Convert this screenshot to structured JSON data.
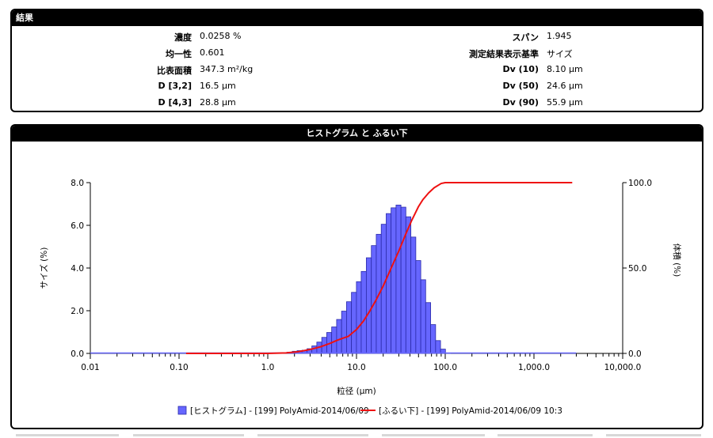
{
  "results": {
    "title": "結果",
    "left": [
      {
        "label": "濃度",
        "value": "0.0258 %"
      },
      {
        "label": "均一性",
        "value": "0.601"
      },
      {
        "label": "比表面積",
        "value": "347.3 m²/kg"
      },
      {
        "label": "D [3,2]",
        "value": "16.5 μm"
      },
      {
        "label": "D [4,3]",
        "value": "28.8 μm"
      }
    ],
    "right": [
      {
        "label": "スパン",
        "value": "1.945"
      },
      {
        "label": "測定結果表示基準",
        "value": "サイズ"
      },
      {
        "label": "Dv (10)",
        "value": "8.10 μm"
      },
      {
        "label": "Dv (50)",
        "value": "24.6 μm"
      },
      {
        "label": "Dv (90)",
        "value": "55.9 μm"
      }
    ]
  },
  "chart_data": {
    "type": "bar",
    "title": "ヒストグラム と ふるい下",
    "xlabel": "粒径 (μm)",
    "ylabel": "サイズ (%)",
    "y2label": "体積 (%)",
    "xscale": "log",
    "xlim": [
      0.01,
      10000
    ],
    "ylim": [
      0,
      8
    ],
    "y2lim": [
      0,
      100
    ],
    "xticks": [
      0.01,
      0.1,
      1,
      10,
      100,
      1000,
      10000
    ],
    "xticklabels": [
      "0.01",
      "0.10",
      "1.0",
      "10.0",
      "100.0",
      "1,000.0",
      "10,000.0"
    ],
    "yticks": [
      0,
      2,
      4,
      6,
      8
    ],
    "yticklabels": [
      "0.0",
      "2.0",
      "4.0",
      "6.0",
      "8.0"
    ],
    "y2ticks": [
      0,
      50,
      100
    ],
    "y2ticklabels": [
      "0.0",
      "50.0",
      "100.0"
    ],
    "grid": false,
    "legend_position": "bottom",
    "series": [
      {
        "name": "[ヒストグラム] - [199] PolyAmid-2014/06/09",
        "kind": "histogram",
        "color": "#6666ff",
        "edge_color": "#2a2aa8",
        "bins_x": [
          1.66,
          1.89,
          2.14,
          2.43,
          2.77,
          3.14,
          3.57,
          4.06,
          4.62,
          5.25,
          5.97,
          6.79,
          7.72,
          8.77,
          9.98,
          11.3,
          12.9,
          14.7,
          16.7,
          19.0,
          21.6,
          24.5,
          27.9,
          31.7,
          36.0,
          41.0,
          46.6,
          53.0,
          60.2,
          68.5,
          77.9,
          88.5,
          100.6
        ],
        "values": [
          0.06,
          0.1,
          0.13,
          0.15,
          0.22,
          0.35,
          0.53,
          0.75,
          0.98,
          1.24,
          1.59,
          1.98,
          2.42,
          2.86,
          3.36,
          3.84,
          4.48,
          5.05,
          5.58,
          6.05,
          6.55,
          6.82,
          6.95,
          6.85,
          6.4,
          5.45,
          4.35,
          3.45,
          2.38,
          1.35,
          0.6,
          0.2,
          0.02
        ]
      },
      {
        "name": "[ふるい下] - [199] PolyAmid-2014/06/09 10:3",
        "kind": "line",
        "axis": "right",
        "color": "#ee1111",
        "x": [
          0.12,
          1.0,
          1.6,
          2.2,
          3.0,
          4.0,
          5.0,
          6.0,
          7.0,
          8.1,
          10.0,
          12.0,
          14.0,
          16.5,
          20.0,
          24.6,
          30.0,
          36.0,
          42.0,
          50.0,
          55.9,
          65.0,
          75.0,
          90.0,
          100.0,
          2700
        ],
        "y": [
          0,
          0,
          0.3,
          1,
          2.3,
          4,
          5.8,
          7.6,
          8.9,
          10,
          14,
          19,
          24.5,
          31,
          39.5,
          50,
          60,
          70,
          78,
          86,
          90,
          94,
          97,
          99.5,
          100,
          100
        ]
      }
    ]
  }
}
